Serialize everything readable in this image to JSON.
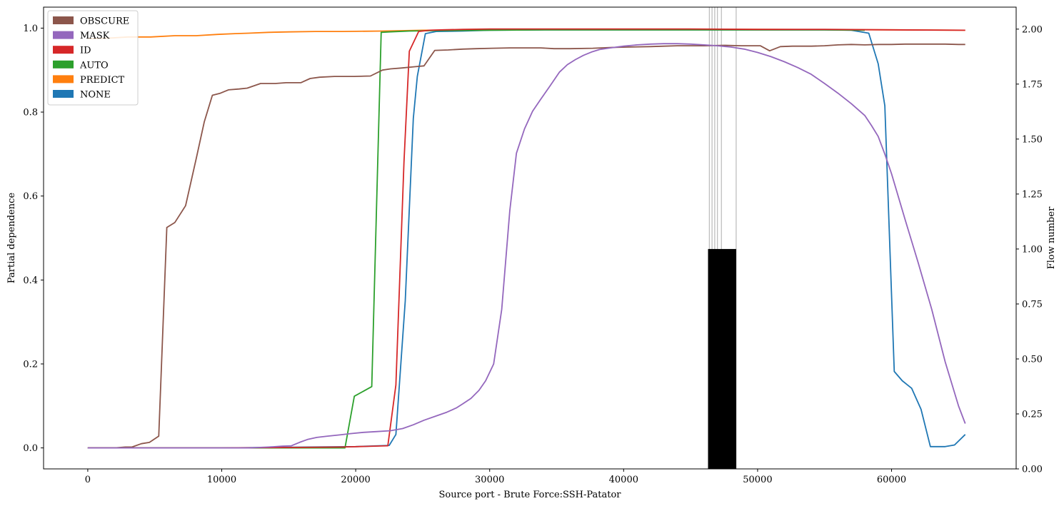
{
  "chart_data": {
    "type": "line",
    "xlabel": "Source port - Brute Force:SSH-Patator",
    "ylabel": "Partial dependence",
    "y2label": "Flow number",
    "xlim": [
      -3300,
      69300
    ],
    "ylim": [
      -0.05,
      1.05
    ],
    "y2lim": [
      0,
      2.1
    ],
    "xticks": [
      0,
      10000,
      20000,
      30000,
      40000,
      50000,
      60000
    ],
    "xtick_labels": [
      "0",
      "10000",
      "20000",
      "30000",
      "40000",
      "50000",
      "60000"
    ],
    "yticks": [
      0.0,
      0.2,
      0.4,
      0.6,
      0.8,
      1.0
    ],
    "ytick_labels": [
      "0.0",
      "0.2",
      "0.4",
      "0.6",
      "0.8",
      "1.0"
    ],
    "y2ticks": [
      0,
      0.25,
      0.5,
      0.75,
      1.0,
      1.25,
      1.5,
      1.75,
      2.0
    ],
    "y2tick_labels": [
      "0.00",
      "0.25",
      "0.50",
      "0.75",
      "1.00",
      "1.25",
      "1.50",
      "1.75",
      "2.00"
    ],
    "grid": false,
    "legend_position": "top-left",
    "series": [
      {
        "name": "OBSCURE",
        "color": "#8c564b",
        "x": [
          0,
          500,
          1000,
          2000,
          2800,
          3300,
          4000,
          4600,
          5300,
          5900,
          6500,
          7300,
          8100,
          8700,
          9300,
          9900,
          10500,
          11300,
          11900,
          12900,
          14000,
          14800,
          15900,
          16600,
          17300,
          18400,
          19900,
          21100,
          22000,
          22600,
          23400,
          24400,
          25100,
          25900,
          26900,
          28000,
          29000,
          30200,
          31500,
          32500,
          33800,
          34800,
          36000,
          37700,
          39100,
          40500,
          42000,
          43000,
          44000,
          45000,
          46000,
          47500,
          48800,
          50200,
          50900,
          51700,
          52600,
          54000,
          55000,
          56000,
          57000,
          58000,
          59000,
          60000,
          61000,
          62000,
          63000,
          64000,
          65000,
          65500
        ],
        "values": [
          0.0,
          0.0,
          0.0,
          0.0,
          0.002,
          0.002,
          0.01,
          0.013,
          0.028,
          0.525,
          0.537,
          0.577,
          0.69,
          0.777,
          0.84,
          0.845,
          0.853,
          0.855,
          0.857,
          0.868,
          0.868,
          0.87,
          0.87,
          0.88,
          0.883,
          0.885,
          0.885,
          0.886,
          0.9,
          0.903,
          0.905,
          0.908,
          0.91,
          0.947,
          0.948,
          0.95,
          0.951,
          0.952,
          0.953,
          0.953,
          0.953,
          0.951,
          0.951,
          0.952,
          0.954,
          0.955,
          0.956,
          0.957,
          0.958,
          0.958,
          0.958,
          0.959,
          0.958,
          0.958,
          0.946,
          0.956,
          0.957,
          0.957,
          0.958,
          0.96,
          0.961,
          0.96,
          0.961,
          0.961,
          0.962,
          0.962,
          0.962,
          0.962,
          0.961,
          0.961
        ]
      },
      {
        "name": "MASK",
        "color": "#9467bd",
        "x": [
          0,
          2000,
          4000,
          6000,
          8000,
          10000,
          12000,
          13500,
          14500,
          15200,
          15800,
          16400,
          17100,
          17900,
          18800,
          19600,
          20600,
          21600,
          22600,
          23500,
          24300,
          25100,
          26000,
          26800,
          27500,
          28000,
          28600,
          29200,
          29700,
          30300,
          30900,
          31500,
          32000,
          32600,
          33200,
          33800,
          34500,
          35200,
          35800,
          36400,
          37000,
          37600,
          38200,
          39000,
          40000,
          41000,
          42000,
          43000,
          44000,
          45000,
          46000,
          47000,
          48000,
          49000,
          50000,
          51000,
          52000,
          53000,
          54000,
          55000,
          56000,
          57000,
          58000,
          58500,
          59000,
          59500,
          60000,
          61000,
          62000,
          63000,
          64000,
          65000,
          65500
        ],
        "values": [
          0.0,
          0.0,
          0.0,
          0.0,
          0.0,
          0.0,
          0.0,
          0.002,
          0.004,
          0.005,
          0.013,
          0.02,
          0.025,
          0.028,
          0.031,
          0.034,
          0.037,
          0.039,
          0.041,
          0.046,
          0.055,
          0.066,
          0.076,
          0.085,
          0.095,
          0.105,
          0.118,
          0.137,
          0.16,
          0.2,
          0.33,
          0.565,
          0.702,
          0.76,
          0.802,
          0.83,
          0.862,
          0.895,
          0.913,
          0.925,
          0.935,
          0.943,
          0.949,
          0.953,
          0.957,
          0.96,
          0.962,
          0.963,
          0.963,
          0.962,
          0.96,
          0.958,
          0.955,
          0.95,
          0.942,
          0.932,
          0.92,
          0.906,
          0.89,
          0.868,
          0.845,
          0.82,
          0.792,
          0.768,
          0.742,
          0.7,
          0.653,
          0.545,
          0.44,
          0.33,
          0.205,
          0.1,
          0.058
        ]
      },
      {
        "name": "ID",
        "color": "#d62728",
        "x": [
          0,
          5000,
          10000,
          15000,
          19000,
          22400,
          23000,
          23600,
          24000,
          24700,
          25500,
          26500,
          28000,
          30000,
          35000,
          40000,
          45000,
          50000,
          55000,
          60000,
          65500
        ],
        "values": [
          0.0,
          0.0,
          0.0,
          0.001,
          0.002,
          0.005,
          0.15,
          0.68,
          0.945,
          0.992,
          0.995,
          0.996,
          0.997,
          0.998,
          0.998,
          0.998,
          0.998,
          0.997,
          0.997,
          0.996,
          0.995
        ]
      },
      {
        "name": "AUTO",
        "color": "#2ca02c",
        "x": [
          0,
          5000,
          10000,
          15000,
          19200,
          19900,
          21200,
          21900,
          22500,
          24000,
          26000,
          30000,
          35000,
          40000,
          45000,
          50000,
          55000,
          58000
        ],
        "values": [
          0.0,
          0.0,
          0.0,
          0.0,
          0.0,
          0.123,
          0.146,
          0.99,
          0.991,
          0.993,
          0.994,
          0.995,
          0.996,
          0.996,
          0.996,
          0.996,
          0.996,
          0.995
        ]
      },
      {
        "name": "PREDICT",
        "color": "#ff7f0e",
        "x": [
          0,
          1500,
          3000,
          4700,
          6500,
          8100,
          9700,
          11000,
          12000,
          13500,
          15000,
          17000,
          19000,
          22000,
          25000,
          30000,
          40000,
          50000,
          60000,
          65500
        ],
        "values": [
          0.975,
          0.976,
          0.979,
          0.979,
          0.982,
          0.982,
          0.985,
          0.987,
          0.988,
          0.99,
          0.991,
          0.992,
          0.992,
          0.993,
          0.995,
          0.996,
          0.997,
          0.997,
          0.996,
          0.995
        ]
      },
      {
        "name": "NONE",
        "color": "#1f77b4",
        "x": [
          0,
          10000,
          20000,
          22500,
          23000,
          23700,
          24300,
          24600,
          25200,
          26000,
          28000,
          30000,
          35000,
          40000,
          45000,
          50000,
          55000,
          57000,
          58300,
          59000,
          59500,
          60200,
          60800,
          61500,
          62200,
          62900,
          64000,
          64700,
          65500
        ],
        "values": [
          0.0,
          0.0,
          0.003,
          0.006,
          0.032,
          0.35,
          0.785,
          0.885,
          0.987,
          0.992,
          0.993,
          0.995,
          0.996,
          0.996,
          0.996,
          0.996,
          0.996,
          0.995,
          0.988,
          0.915,
          0.815,
          0.182,
          0.16,
          0.142,
          0.092,
          0.003,
          0.003,
          0.007,
          0.032
        ]
      }
    ],
    "flow_histogram": {
      "color": "#000000",
      "bins": [
        {
          "x0": 46300,
          "x1": 48400,
          "count": 1.0
        }
      ],
      "flow_lines": [
        46400,
        46600,
        46800,
        47000,
        47300,
        48400
      ]
    }
  }
}
